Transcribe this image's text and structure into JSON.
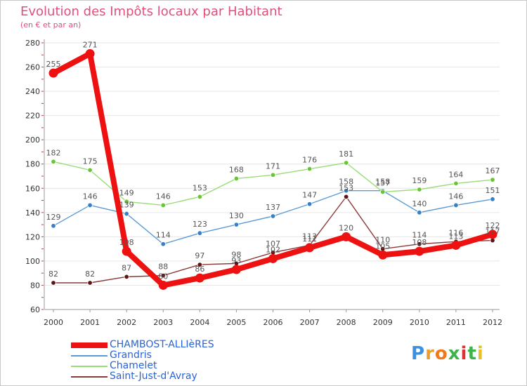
{
  "header": {
    "title": "Evolution des Impôts locaux par Habitant",
    "subtitle": "(en € et par an)"
  },
  "logo": {
    "letters": [
      "P",
      "r",
      "o",
      "x",
      "i",
      "t",
      "i"
    ],
    "colors": [
      "#3d8fe0",
      "#e8a030",
      "#f07a1a",
      "#3db34a",
      "#e03030",
      "#3db34a",
      "#e8c020"
    ]
  },
  "chart_data": {
    "type": "line",
    "title": "Evolution des Impôts locaux par Habitant",
    "subtitle": "(en € et par an)",
    "xlabel": "",
    "ylabel": "",
    "categories": [
      "2000",
      "2001",
      "2002",
      "2003",
      "2004",
      "2005",
      "2006",
      "2007",
      "2008",
      "2009",
      "2010",
      "2011",
      "2012"
    ],
    "ylim": [
      60,
      280
    ],
    "yticks": [
      60,
      80,
      100,
      120,
      140,
      160,
      180,
      200,
      220,
      240,
      260,
      280
    ],
    "grid": "horizontal",
    "legend": "bottom-left",
    "series": [
      {
        "name": "CHAMBOST-ALLIèRES",
        "color": "#ee1111",
        "marker_color": "#ee1111",
        "emphasis": true,
        "values": [
          255,
          271,
          108,
          80,
          86,
          93,
          102,
          111,
          120,
          105,
          108,
          113,
          122
        ],
        "labels": [
          "255",
          "271",
          "108",
          "80",
          "86",
          "93",
          "102",
          "111",
          "120",
          "105",
          "108",
          "113",
          "122"
        ]
      },
      {
        "name": "Grandris",
        "color": "#5b9bd5",
        "marker_color": "#3a7fc4",
        "values": [
          129,
          146,
          139,
          114,
          123,
          130,
          137,
          147,
          158,
          158,
          140,
          146,
          151
        ],
        "labels": [
          "129",
          "146",
          "139",
          "114",
          "123",
          "130",
          "137",
          "147",
          "158",
          "158",
          "140",
          "146",
          "151"
        ]
      },
      {
        "name": "Chamelet",
        "color": "#99dd77",
        "marker_color": "#6cc33a",
        "values": [
          182,
          175,
          149,
          146,
          153,
          168,
          171,
          176,
          181,
          157,
          159,
          164,
          167
        ],
        "labels": [
          "182",
          "175",
          "149",
          "146",
          "153",
          "168",
          "171",
          "176",
          "181",
          "157",
          "159",
          "164",
          "167"
        ]
      },
      {
        "name": "Saint-Just-d'Avray",
        "color": "#8b3a3a",
        "marker_color": "#5a1515",
        "values": [
          82,
          82,
          87,
          88,
          97,
          98,
          107,
          113,
          153,
          110,
          114,
          116,
          117
        ],
        "labels": [
          "82",
          "82",
          "87",
          "88",
          "97",
          "98",
          "107",
          "113",
          "153",
          "110",
          "114",
          "116",
          "117"
        ]
      }
    ]
  }
}
